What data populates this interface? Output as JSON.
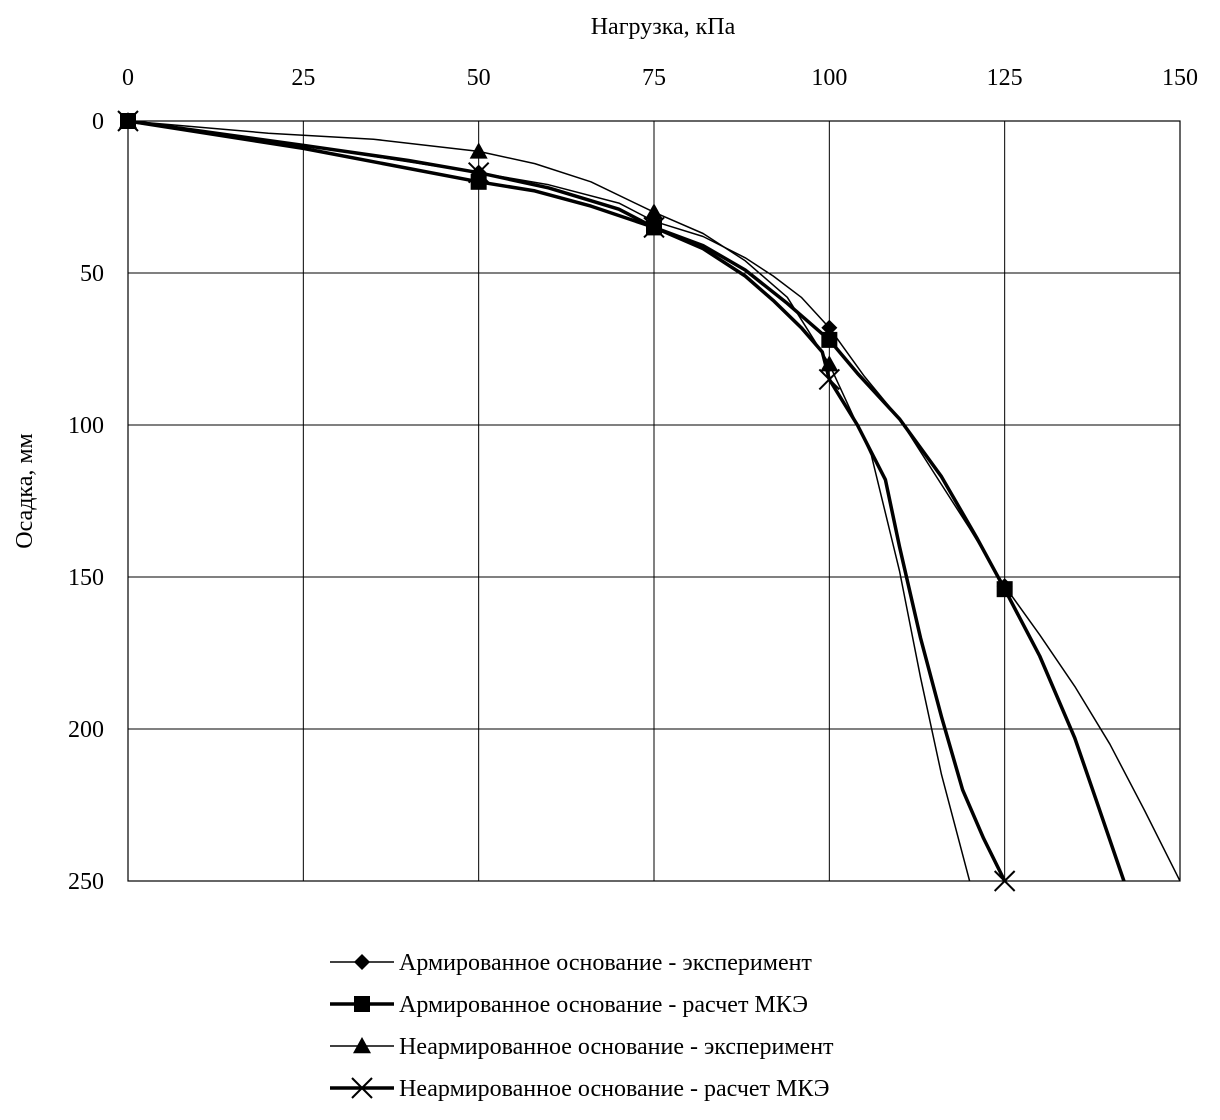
{
  "chart_data": {
    "type": "line",
    "xlabel": "Нагрузка, кПа",
    "ylabel": "Осадка, мм",
    "xlim": [
      0,
      150
    ],
    "ylim": [
      0,
      250
    ],
    "y_inverted": true,
    "x_axis_position": "top",
    "grid": true,
    "x_ticks": [
      0,
      25,
      50,
      75,
      100,
      125,
      150
    ],
    "y_ticks": [
      0,
      50,
      100,
      150,
      200,
      250
    ],
    "legend_position": "bottom",
    "series": [
      {
        "name": "Армированное  основание - эксперимент",
        "marker": "diamond",
        "line_width": "thin",
        "points": [
          [
            0,
            0
          ],
          [
            50,
            17
          ],
          [
            75,
            33
          ],
          [
            100,
            68
          ],
          [
            125,
            153
          ]
        ],
        "curve": [
          [
            0,
            0
          ],
          [
            25,
            8
          ],
          [
            50,
            17
          ],
          [
            60,
            21
          ],
          [
            70,
            27
          ],
          [
            75,
            33
          ],
          [
            82,
            38
          ],
          [
            88,
            45
          ],
          [
            92,
            51
          ],
          [
            96,
            58
          ],
          [
            100,
            68
          ],
          [
            105,
            84
          ],
          [
            110,
            98
          ],
          [
            115,
            116
          ],
          [
            120,
            134
          ],
          [
            125,
            153
          ],
          [
            130,
            169
          ],
          [
            135,
            186
          ],
          [
            140,
            205
          ],
          [
            145,
            227
          ],
          [
            150,
            250
          ]
        ]
      },
      {
        "name": "Армированное основание - расчет МКЭ",
        "marker": "square",
        "line_width": "thick",
        "points": [
          [
            0,
            0
          ],
          [
            50,
            20
          ],
          [
            75,
            35
          ],
          [
            100,
            72
          ],
          [
            125,
            154
          ]
        ],
        "curve": [
          [
            0,
            0
          ],
          [
            25,
            9
          ],
          [
            50,
            20
          ],
          [
            58,
            23
          ],
          [
            66,
            28
          ],
          [
            75,
            35
          ],
          [
            82,
            41
          ],
          [
            88,
            49
          ],
          [
            94,
            60
          ],
          [
            100,
            72
          ],
          [
            104,
            83
          ],
          [
            110,
            98
          ],
          [
            116,
            117
          ],
          [
            121,
            137
          ],
          [
            125,
            154
          ],
          [
            130,
            176
          ],
          [
            135,
            203
          ],
          [
            138,
            223
          ],
          [
            142,
            250
          ]
        ]
      },
      {
        "name": "Неармированное основание - эксперимент",
        "marker": "triangle",
        "line_width": "thin",
        "points": [
          [
            0,
            0
          ],
          [
            50,
            10
          ],
          [
            75,
            30
          ],
          [
            100,
            80
          ]
        ],
        "curve": [
          [
            0,
            0
          ],
          [
            20,
            4
          ],
          [
            35,
            6
          ],
          [
            50,
            10
          ],
          [
            58,
            14
          ],
          [
            66,
            20
          ],
          [
            75,
            30
          ],
          [
            82,
            37
          ],
          [
            88,
            46
          ],
          [
            94,
            58
          ],
          [
            100,
            80
          ],
          [
            106,
            110
          ],
          [
            110,
            148
          ],
          [
            113,
            183
          ],
          [
            116,
            215
          ],
          [
            120,
            250
          ]
        ]
      },
      {
        "name": "Неармированное основание - расчет МКЭ",
        "marker": "x",
        "line_width": "thick",
        "points": [
          [
            0,
            0
          ],
          [
            50,
            17
          ],
          [
            75,
            35
          ],
          [
            100,
            85
          ],
          [
            125,
            250
          ]
        ],
        "curve": [
          [
            0,
            0
          ],
          [
            25,
            8
          ],
          [
            40,
            13
          ],
          [
            50,
            17
          ],
          [
            60,
            22
          ],
          [
            70,
            29
          ],
          [
            75,
            35
          ],
          [
            82,
            42
          ],
          [
            88,
            51
          ],
          [
            92,
            59
          ],
          [
            96,
            68
          ],
          [
            99,
            76
          ],
          [
            100,
            85
          ],
          [
            104,
            100
          ],
          [
            108,
            118
          ],
          [
            110,
            140
          ],
          [
            113,
            170
          ],
          [
            116,
            196
          ],
          [
            119,
            220
          ],
          [
            122,
            236
          ],
          [
            125,
            250
          ]
        ]
      }
    ]
  }
}
